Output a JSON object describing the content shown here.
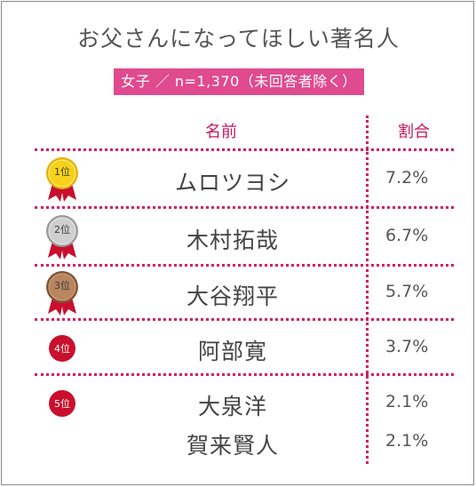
{
  "chart_data": {
    "type": "table",
    "title": "お父さんになってほしい著名人",
    "subtitle": "女子 ／ n=1,370（未回答者除く）",
    "columns": [
      "名前",
      "割合"
    ],
    "rows": [
      {
        "rank": "1位",
        "name": "ムロツヨシ",
        "percent": "7.2%",
        "value": 7.2,
        "medal": "gold"
      },
      {
        "rank": "2位",
        "name": "木村拓哉",
        "percent": "6.7%",
        "value": 6.7,
        "medal": "silver"
      },
      {
        "rank": "3位",
        "name": "大谷翔平",
        "percent": "5.7%",
        "value": 5.7,
        "medal": "bronze"
      },
      {
        "rank": "4位",
        "name": "阿部寛",
        "percent": "3.7%",
        "value": 3.7,
        "medal": "none"
      },
      {
        "rank": "5位",
        "name": "大泉洋",
        "percent": "2.1%",
        "value": 2.1,
        "medal": "none"
      },
      {
        "rank": "",
        "name": "賀来賢人",
        "percent": "2.1%",
        "value": 2.1,
        "medal": "none"
      }
    ],
    "colors": {
      "accent": "#d81b60",
      "badge": "#e04a8e",
      "gold": "#f5c400",
      "silver": "#b8b8b8",
      "bronze": "#a0704a",
      "rank_dot": "#c8102e"
    }
  }
}
